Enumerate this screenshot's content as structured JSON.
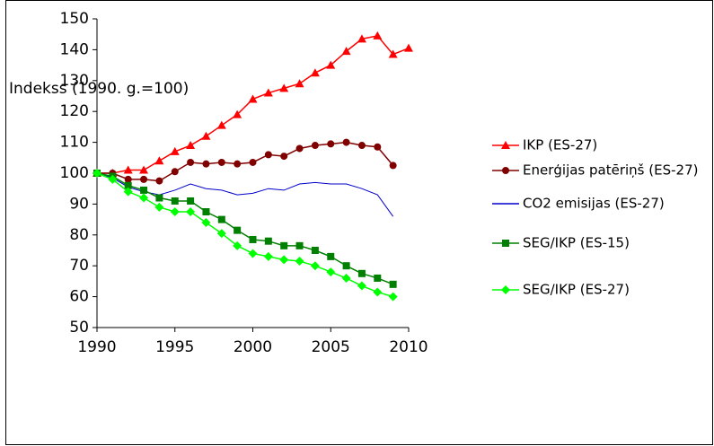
{
  "chart_data": {
    "type": "line",
    "y_label": "Indekss (1990. g.=100)",
    "x": [
      1990,
      1991,
      1992,
      1993,
      1994,
      1995,
      1996,
      1997,
      1998,
      1999,
      2000,
      2001,
      2002,
      2003,
      2004,
      2005,
      2006,
      2007,
      2008,
      2009,
      2010
    ],
    "series": [
      {
        "name": "IKP (ES-27)",
        "color": "#ff0000",
        "marker": "triangle",
        "values": [
          100,
          100,
          101,
          101,
          104,
          107,
          109,
          112,
          115.5,
          119,
          124,
          126,
          127.5,
          129,
          132.5,
          135,
          139.5,
          143.5,
          144.5,
          138.5,
          140.5
        ]
      },
      {
        "name": "Enerģijas patēriņš (ES-27)",
        "color": "#800000",
        "marker": "circle",
        "values": [
          100,
          100,
          98,
          98,
          97.5,
          100.5,
          103.5,
          103,
          103.5,
          103,
          103.5,
          106,
          105.5,
          108,
          109,
          109.5,
          110,
          109,
          108.5,
          102.5,
          null
        ]
      },
      {
        "name": "CO2 emisijas (ES-27)",
        "color": "#0000cc",
        "marker": "none",
        "values": [
          100,
          98.5,
          95.5,
          94,
          93,
          94.5,
          96.5,
          95,
          94.5,
          93,
          93.5,
          95,
          94.5,
          96.5,
          97,
          96.5,
          96.5,
          95,
          93,
          86,
          null
        ]
      },
      {
        "name": "SEG/IKP (ES-15)",
        "color": "#008000",
        "marker": "square",
        "values": [
          100,
          99,
          96,
          94.5,
          92,
          91,
          91,
          87.5,
          85,
          81.5,
          78.5,
          78,
          76.5,
          76.5,
          75,
          73,
          70,
          67.5,
          66,
          64,
          null
        ]
      },
      {
        "name": "SEG/IKP (ES-27)",
        "color": "#00ff00",
        "marker": "diamond",
        "values": [
          100,
          98,
          94,
          92,
          89,
          87.5,
          87.5,
          84,
          80.5,
          76.5,
          74,
          73,
          72,
          71.5,
          70,
          68,
          66,
          63.5,
          61.5,
          60,
          null
        ]
      }
    ],
    "xlim": [
      1990,
      2010
    ],
    "xticks": [
      1990,
      1995,
      2000,
      2005,
      2010
    ],
    "ylim": [
      50,
      150
    ],
    "yticks": [
      50,
      60,
      70,
      80,
      90,
      100,
      110,
      120,
      130,
      140,
      150
    ],
    "legend": "right"
  }
}
